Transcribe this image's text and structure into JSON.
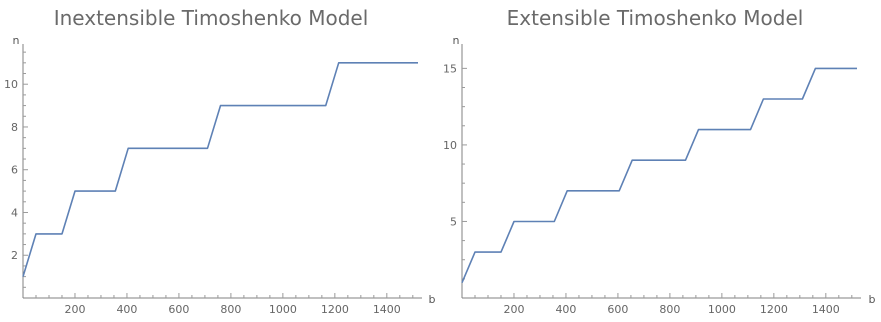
{
  "chart_data": [
    {
      "type": "line",
      "title": "Inextensible Timoshenko Model",
      "xlabel": "b",
      "ylabel": "n",
      "xlim": [
        0,
        1520
      ],
      "ylim": [
        0,
        11.6
      ],
      "xticks": [
        200,
        400,
        600,
        800,
        1000,
        1200,
        1400
      ],
      "yticks": [
        2,
        4,
        6,
        8,
        10
      ],
      "grid": false,
      "series": [
        {
          "color": "#5e81b5",
          "x": [
            0,
            50,
            150,
            200,
            355,
            405,
            710,
            760,
            1165,
            1215,
            1520
          ],
          "y": [
            1,
            3,
            3,
            5,
            5,
            7,
            7,
            9,
            9,
            11,
            11
          ]
        }
      ]
    },
    {
      "type": "line",
      "title": "Extensible Timoshenko Model",
      "xlabel": "b",
      "ylabel": "n",
      "xlim": [
        0,
        1520
      ],
      "ylim": [
        0,
        16.2
      ],
      "xticks": [
        200,
        400,
        600,
        800,
        1000,
        1200,
        1400
      ],
      "yticks": [
        5,
        10,
        15
      ],
      "grid": false,
      "series": [
        {
          "color": "#5e81b5",
          "x": [
            0,
            50,
            150,
            200,
            355,
            405,
            605,
            655,
            860,
            910,
            1110,
            1160,
            1310,
            1360,
            1520
          ],
          "y": [
            1,
            3,
            3,
            5,
            5,
            7,
            7,
            9,
            9,
            11,
            11,
            13,
            13,
            15,
            15
          ]
        }
      ]
    }
  ]
}
